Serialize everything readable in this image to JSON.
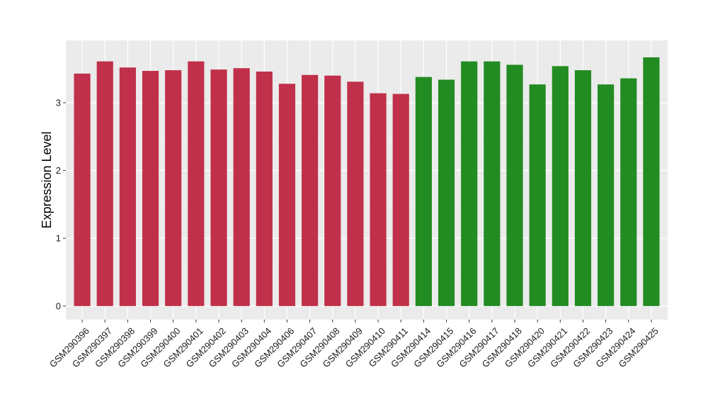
{
  "chart_data": {
    "type": "bar",
    "title": "",
    "xlabel": "",
    "ylabel": "Expression Level",
    "ylim": [
      -0.2,
      3.92
    ],
    "yticks": [
      0,
      1,
      2,
      3
    ],
    "grid": true,
    "panel_background": "#ebebeb",
    "categories": [
      "GSM290396",
      "GSM290397",
      "GSM290398",
      "GSM290399",
      "GSM290400",
      "GSM290401",
      "GSM290402",
      "GSM290403",
      "GSM290404",
      "GSM290406",
      "GSM290407",
      "GSM290408",
      "GSM290409",
      "GSM290410",
      "GSM290411",
      "GSM290414",
      "GSM290415",
      "GSM290416",
      "GSM290417",
      "GSM290418",
      "GSM290420",
      "GSM290421",
      "GSM290422",
      "GSM290423",
      "GSM290424",
      "GSM290425"
    ],
    "values": [
      3.43,
      3.61,
      3.52,
      3.47,
      3.48,
      3.61,
      3.49,
      3.51,
      3.46,
      3.28,
      3.41,
      3.4,
      3.31,
      3.14,
      3.13,
      3.38,
      3.34,
      3.61,
      3.61,
      3.56,
      3.27,
      3.54,
      3.48,
      3.27,
      3.36,
      3.67
    ],
    "bar_colors": [
      "#c0304a",
      "#c0304a",
      "#c0304a",
      "#c0304a",
      "#c0304a",
      "#c0304a",
      "#c0304a",
      "#c0304a",
      "#c0304a",
      "#c0304a",
      "#c0304a",
      "#c0304a",
      "#c0304a",
      "#c0304a",
      "#c0304a",
      "#228b22",
      "#228b22",
      "#228b22",
      "#228b22",
      "#228b22",
      "#228b22",
      "#228b22",
      "#228b22",
      "#228b22",
      "#228b22",
      "#228b22"
    ]
  }
}
